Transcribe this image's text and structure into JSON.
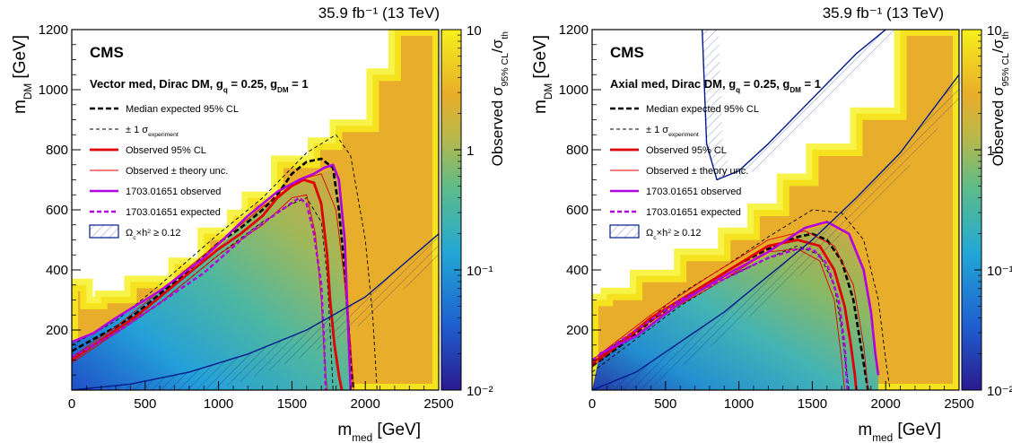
{
  "lumi_label": "35.9 fb⁻¹ (13 TeV)",
  "colors": {
    "observed": "#e00000",
    "expected": "#000000",
    "ref_observed": "#b000e0",
    "relic": "#001a8c",
    "excluded_bg": "#e8ad2a",
    "cmap_low": "#2a1a8f",
    "cmap_mid": "#22a7d6",
    "cmap_high": "#f6f01c"
  },
  "chart_data": [
    {
      "type": "heatmap",
      "experiment": "CMS",
      "model": "Vector med, Dirac DM, g_q = 0.25, g_DM = 1",
      "xlabel": "m_med [GeV]",
      "ylabel": "m_DM [GeV]",
      "zlabel": "Observed σ_95% CL/σ_th",
      "xlim": [
        0,
        2500
      ],
      "ylim": [
        0,
        1200
      ],
      "zlim": [
        0.01,
        10
      ],
      "zscale": "log",
      "xticks": [
        "0",
        "500",
        "1000",
        "1500",
        "2000",
        "2500"
      ],
      "yticks": [
        "200",
        "400",
        "600",
        "800",
        "1000",
        "1200"
      ],
      "zticks": [
        "10⁻²",
        "10⁻¹",
        "1",
        "10"
      ],
      "legend": [
        {
          "label": "Median expected 95% CL",
          "style": "expected"
        },
        {
          "label": "± 1 σ_experiment",
          "style": "expected-band"
        },
        {
          "label": "Observed 95% CL",
          "style": "observed"
        },
        {
          "label": "Observed ± theory unc.",
          "style": "observed-theory"
        },
        {
          "label": "1703.01651 observed",
          "style": "ref-observed"
        },
        {
          "label": "1703.01651 expected",
          "style": "ref-expected"
        },
        {
          "label": "Ω_c×h² ≥ 0.12",
          "style": "relic"
        }
      ],
      "heatmap_upper_edge": {
        "x": [
          0,
          25,
          100,
          200,
          400,
          700,
          900,
          1100,
          1200,
          1400,
          1650,
          1800,
          2050,
          2200,
          2500
        ],
        "y": [
          350,
          350,
          290,
          310,
          360,
          420,
          520,
          580,
          640,
          760,
          820,
          880,
          1050,
          1200,
          1200
        ]
      },
      "curves": [
        {
          "name": "Median expected 95% CL",
          "style": "expected",
          "x": [
            0,
            150,
            300,
            450,
            600,
            800,
            1000,
            1150,
            1300,
            1400,
            1500,
            1600,
            1700,
            1780,
            1820,
            1860,
            1880,
            1900,
            1920
          ],
          "y": [
            130,
            170,
            210,
            260,
            320,
            400,
            490,
            540,
            600,
            650,
            720,
            760,
            770,
            740,
            600,
            400,
            250,
            100,
            0
          ]
        },
        {
          "name": "± 1 σ_experiment (upper)",
          "style": "expected-band",
          "x": [
            0,
            300,
            600,
            1000,
            1300,
            1600,
            1800,
            1900,
            2000,
            2050,
            2080
          ],
          "y": [
            150,
            230,
            350,
            520,
            640,
            790,
            850,
            780,
            500,
            250,
            0
          ]
        },
        {
          "name": "± 1 σ_experiment (lower)",
          "style": "expected-band",
          "x": [
            0,
            300,
            600,
            1000,
            1300,
            1500,
            1600,
            1700,
            1740,
            1760,
            1780
          ],
          "y": [
            110,
            190,
            290,
            450,
            560,
            620,
            640,
            560,
            380,
            200,
            0
          ]
        },
        {
          "name": "Observed 95% CL",
          "style": "observed",
          "x": [
            0,
            150,
            300,
            450,
            600,
            800,
            1000,
            1150,
            1300,
            1400,
            1500,
            1580,
            1650,
            1700,
            1740,
            1760,
            1790,
            1820,
            1840
          ],
          "y": [
            100,
            150,
            200,
            250,
            310,
            390,
            470,
            520,
            580,
            640,
            680,
            700,
            690,
            620,
            450,
            300,
            150,
            50,
            0
          ]
        },
        {
          "name": "Observed ± theory unc. (upper)",
          "style": "observed-theory",
          "x": [
            0,
            300,
            600,
            1000,
            1300,
            1550,
            1700,
            1800,
            1850,
            1900,
            1920
          ],
          "y": [
            110,
            210,
            330,
            490,
            610,
            700,
            720,
            600,
            400,
            150,
            0
          ]
        },
        {
          "name": "Observed ± theory unc. (lower)",
          "style": "observed-theory",
          "x": [
            0,
            300,
            600,
            1000,
            1300,
            1500,
            1600,
            1660,
            1700,
            1720,
            1740
          ],
          "y": [
            90,
            190,
            290,
            450,
            550,
            640,
            650,
            520,
            300,
            120,
            0
          ]
        },
        {
          "name": "1703.01651 observed",
          "style": "ref-observed",
          "x": [
            0,
            150,
            300,
            600,
            900,
            1200,
            1400,
            1550,
            1650,
            1720,
            1780,
            1820,
            1860,
            1880,
            1900
          ],
          "y": [
            160,
            190,
            240,
            330,
            440,
            580,
            660,
            700,
            720,
            740,
            750,
            700,
            500,
            250,
            0
          ]
        },
        {
          "name": "1703.01651 expected",
          "style": "ref-expected",
          "x": [
            0,
            300,
            600,
            900,
            1200,
            1400,
            1550,
            1600,
            1650,
            1700,
            1720,
            1730
          ],
          "y": [
            110,
            190,
            290,
            390,
            520,
            590,
            640,
            620,
            520,
            350,
            150,
            0
          ]
        },
        {
          "name": "Ω_c×h² ≥ 0.12",
          "style": "relic",
          "x": [
            0,
            400,
            800,
            1200,
            1600,
            2000,
            2500
          ],
          "y": [
            0,
            20,
            60,
            120,
            200,
            310,
            520
          ]
        }
      ]
    },
    {
      "type": "heatmap",
      "experiment": "CMS",
      "model": "Axial med, Dirac DM, g_q = 0.25, g_DM = 1",
      "xlabel": "m_med [GeV]",
      "ylabel": "m_DM [GeV]",
      "zlabel": "Observed σ_95% CL/σ_th",
      "xlim": [
        0,
        2500
      ],
      "ylim": [
        0,
        1200
      ],
      "zlim": [
        0.01,
        10
      ],
      "zscale": "log",
      "xticks": [
        "0",
        "500",
        "1000",
        "1500",
        "2000",
        "2500"
      ],
      "yticks": [
        "200",
        "400",
        "600",
        "800",
        "1000",
        "1200"
      ],
      "zticks": [
        "10⁻²",
        "10⁻¹",
        "1",
        "10"
      ],
      "legend": [
        {
          "label": "Median expected 95% CL",
          "style": "expected"
        },
        {
          "label": "± 1 σ_experiment",
          "style": "expected-band"
        },
        {
          "label": "Observed 95% CL",
          "style": "observed"
        },
        {
          "label": "Observed ± theory unc.",
          "style": "observed-theory"
        },
        {
          "label": "1703.01651 observed",
          "style": "ref-observed"
        },
        {
          "label": "1703.01651 expected",
          "style": "ref-expected"
        },
        {
          "label": "Ω_c×h² ≥ 0.12",
          "style": "relic"
        }
      ],
      "heatmap_upper_edge": {
        "x": [
          0,
          100,
          300,
          600,
          900,
          1100,
          1300,
          1500,
          1800,
          2100,
          2500
        ],
        "y": [
          300,
          320,
          380,
          450,
          520,
          600,
          700,
          800,
          920,
          1200,
          1200
        ]
      },
      "curves": [
        {
          "name": "Median expected 95% CL",
          "style": "expected",
          "x": [
            0,
            200,
            400,
            600,
            800,
            1000,
            1200,
            1400,
            1500,
            1600,
            1700,
            1780,
            1820,
            1860,
            1880
          ],
          "y": [
            80,
            150,
            230,
            300,
            360,
            420,
            470,
            510,
            520,
            500,
            430,
            300,
            180,
            60,
            0
          ]
        },
        {
          "name": "± 1 σ_experiment (upper)",
          "style": "expected-band",
          "x": [
            0,
            300,
            600,
            900,
            1200,
            1500,
            1700,
            1850,
            1950,
            2000,
            2030
          ],
          "y": [
            100,
            200,
            320,
            410,
            510,
            600,
            590,
            500,
            300,
            100,
            0
          ]
        },
        {
          "name": "± 1 σ_experiment (lower)",
          "style": "expected-band",
          "x": [
            0,
            300,
            600,
            900,
            1200,
            1400,
            1550,
            1650,
            1700,
            1730,
            1750
          ],
          "y": [
            60,
            170,
            280,
            370,
            440,
            480,
            450,
            350,
            200,
            80,
            0
          ]
        },
        {
          "name": "Observed 95% CL",
          "style": "observed",
          "x": [
            0,
            200,
            400,
            600,
            800,
            1000,
            1200,
            1400,
            1550,
            1650,
            1720,
            1760,
            1790,
            1800
          ],
          "y": [
            90,
            160,
            240,
            300,
            360,
            420,
            480,
            500,
            480,
            400,
            280,
            160,
            50,
            0
          ]
        },
        {
          "name": "Observed ± theory unc. (upper)",
          "style": "observed-theory",
          "x": [
            0,
            400,
            800,
            1200,
            1450,
            1650,
            1780,
            1850,
            1880
          ],
          "y": [
            100,
            250,
            380,
            500,
            530,
            480,
            350,
            150,
            0
          ]
        },
        {
          "name": "Observed ± theory unc. (lower)",
          "style": "observed-theory",
          "x": [
            0,
            400,
            800,
            1200,
            1400,
            1550,
            1650,
            1700,
            1720
          ],
          "y": [
            80,
            230,
            340,
            460,
            470,
            430,
            300,
            100,
            0
          ]
        },
        {
          "name": "1703.01651 observed",
          "style": "ref-observed",
          "x": [
            50,
            300,
            600,
            900,
            1200,
            1450,
            1600,
            1750,
            1850,
            1900,
            1930,
            1950
          ],
          "y": [
            120,
            180,
            290,
            380,
            460,
            540,
            560,
            520,
            400,
            260,
            120,
            50
          ]
        },
        {
          "name": "1703.01651 expected",
          "style": "ref-expected",
          "x": [
            0,
            300,
            600,
            900,
            1200,
            1400,
            1500,
            1600,
            1680,
            1720,
            1740
          ],
          "y": [
            100,
            200,
            300,
            370,
            440,
            470,
            470,
            420,
            300,
            150,
            0
          ]
        },
        {
          "name": "Ω_c×h² ≥ 0.12 (lower)",
          "style": "relic",
          "x": [
            0,
            300,
            600,
            900,
            1200,
            1500,
            1800,
            2100,
            2500
          ],
          "y": [
            0,
            60,
            160,
            260,
            380,
            500,
            640,
            790,
            1050
          ]
        },
        {
          "name": "Ω_c×h² ≥ 0.12 (upper)",
          "style": "relic",
          "x": [
            750,
            780,
            850,
            1000,
            1200,
            1400,
            1600,
            1800,
            2000
          ],
          "y": [
            1200,
            820,
            700,
            730,
            820,
            920,
            1020,
            1120,
            1200
          ]
        }
      ]
    }
  ]
}
